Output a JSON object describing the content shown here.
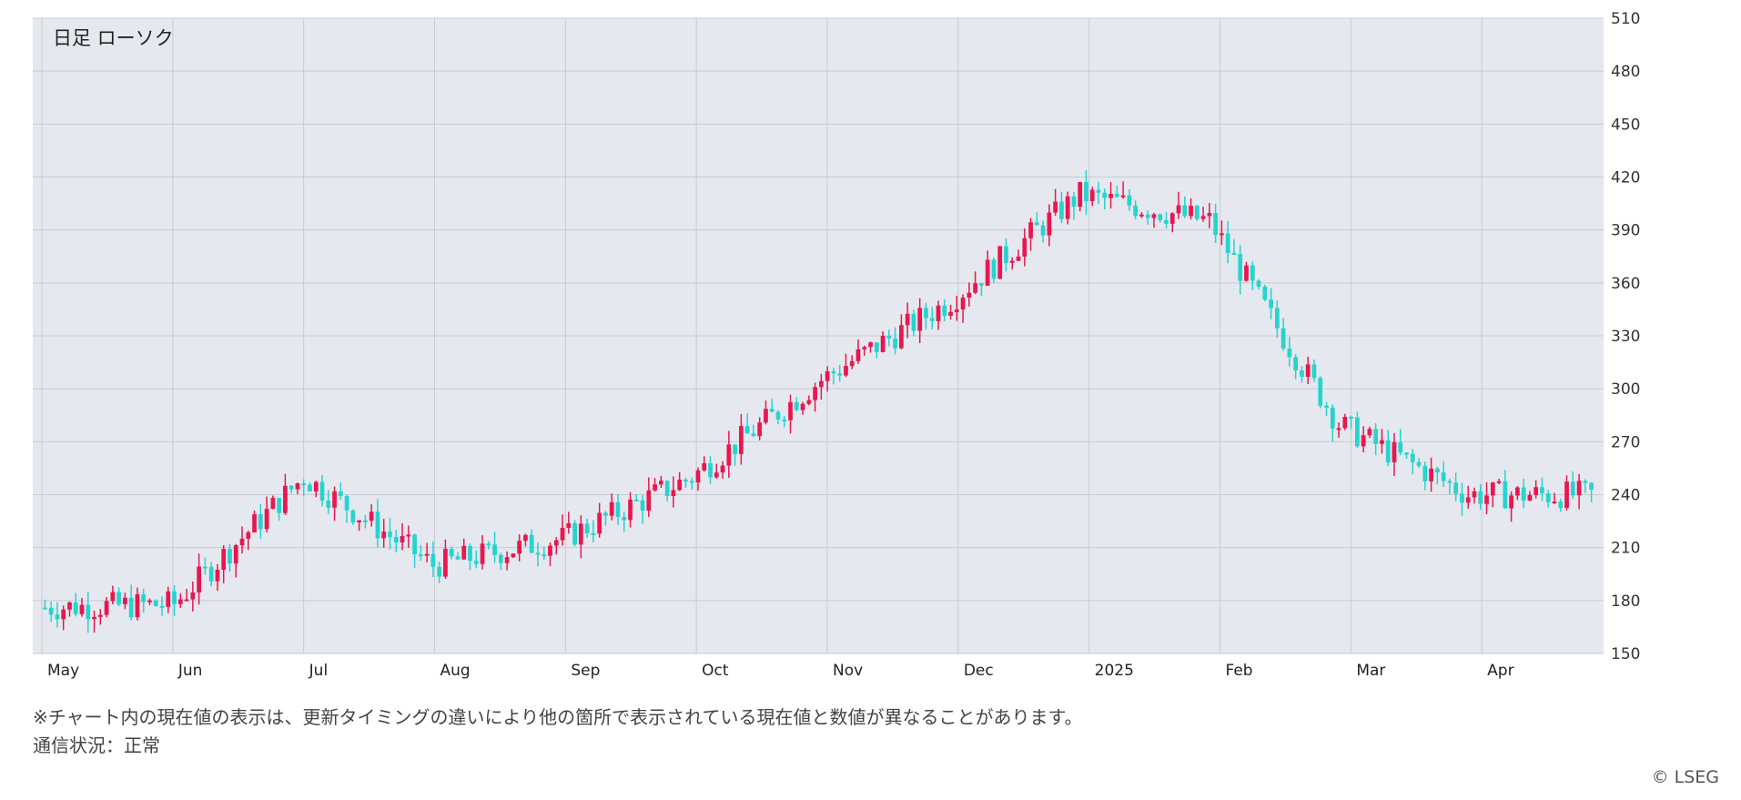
{
  "panel_title": "日足 ローソク",
  "notice": "※チャート内の現在値の表示は、更新タイミングの違いにより他の箇所で表示されている現在値と数値が異なることがあります。",
  "status": "通信状況：正常",
  "copyright": "© LSEG",
  "colors": {
    "up": "#e8174f",
    "down": "#27d3cf",
    "grid": "#c9cbd3",
    "plot_bg": "#e6e8ef"
  },
  "chart_data": {
    "type": "candlestick",
    "title": "日足 ローソク",
    "y_axis": {
      "position": "right",
      "range": [
        150,
        510
      ],
      "ticks": [
        150,
        180,
        210,
        240,
        270,
        300,
        330,
        360,
        390,
        420,
        450,
        480,
        510
      ]
    },
    "x_axis": {
      "ticks": [
        "May",
        "Jun",
        "Jul",
        "Aug",
        "Sep",
        "Oct",
        "Nov",
        "Dec",
        "2025",
        "Feb",
        "Mar",
        "Apr"
      ]
    },
    "grid": true,
    "approx_close_path": [
      {
        "period": "May",
        "close": 176
      },
      {
        "period": "Jun",
        "close": 178
      },
      {
        "period": "Jul",
        "close": 250
      },
      {
        "period": "Aug",
        "close": 200
      },
      {
        "period": "Sep",
        "close": 215
      },
      {
        "period": "Oct",
        "close": 250
      },
      {
        "period": "Nov",
        "close": 305
      },
      {
        "period": "Dec",
        "close": 350
      },
      {
        "period": "2025",
        "close": 410
      },
      {
        "period": "Feb",
        "close": 395
      },
      {
        "period": "Mar",
        "close": 280
      },
      {
        "period": "Apr",
        "close": 240
      }
    ]
  }
}
